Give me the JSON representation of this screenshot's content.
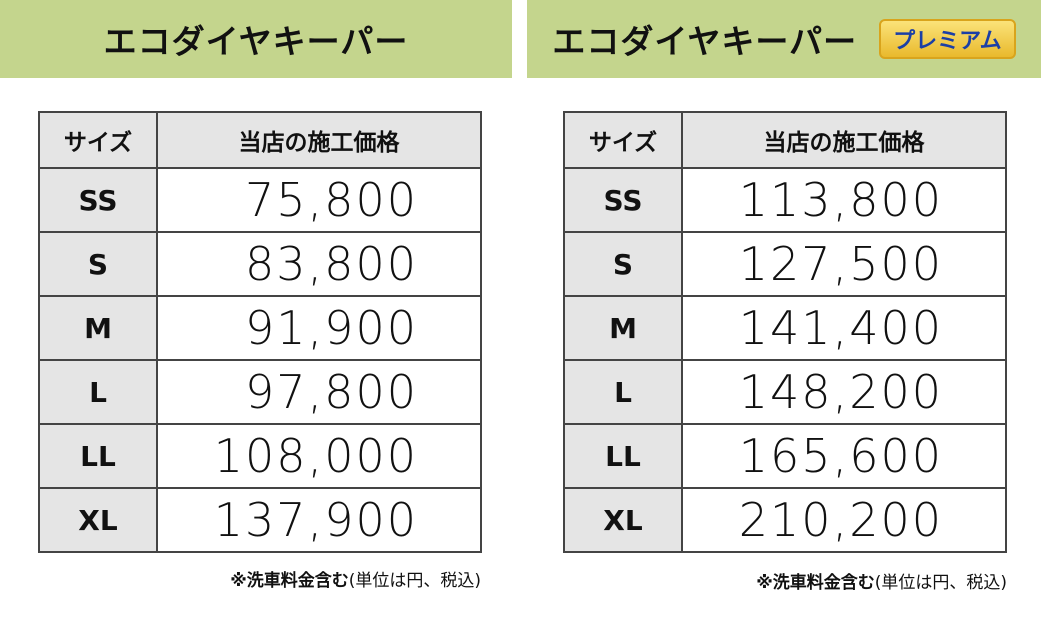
{
  "panels": [
    {
      "title": "エコダイヤキーパー",
      "table": {
        "header": [
          "サイズ",
          "当店の施工価格"
        ],
        "rows": [
          [
            "SS",
            "75,800"
          ],
          [
            "S",
            "83,800"
          ],
          [
            "M",
            "91,900"
          ],
          [
            "L",
            "97,800"
          ],
          [
            "LL",
            "108,000"
          ],
          [
            "XL",
            "137,900"
          ]
        ]
      },
      "note": {
        "bold": "※洗車料金含む",
        "text": "(単位は円、税込)"
      }
    },
    {
      "title": "エコダイヤキーパー",
      "badge": "プレミアム",
      "table": {
        "header": [
          "サイズ",
          "当店の施工価格"
        ],
        "rows": [
          [
            "SS",
            "113,800"
          ],
          [
            "S",
            "127,500"
          ],
          [
            "M",
            "141,400"
          ],
          [
            "L",
            "148,200"
          ],
          [
            "LL",
            "165,600"
          ],
          [
            "XL",
            "210,200"
          ]
        ]
      },
      "note": {
        "bold": "※洗車料金含む",
        "text": "(単位は円、税込)"
      }
    }
  ]
}
